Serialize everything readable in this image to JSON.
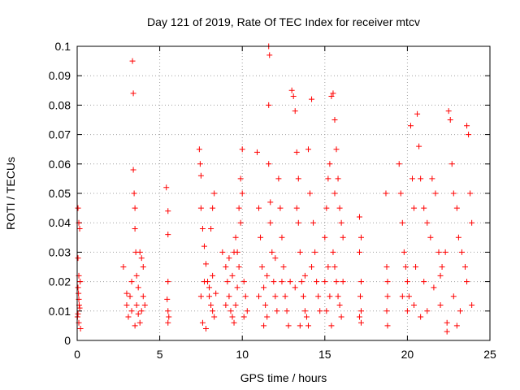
{
  "chart_data": {
    "type": "scatter",
    "title": "Day 121 of 2019, Rate Of TEC Index for receiver mtcv",
    "xlabel": "GPS time / hours",
    "ylabel": "ROTI / TECUs",
    "xlim": [
      0,
      25
    ],
    "ylim": [
      0,
      0.1
    ],
    "x_ticks": [
      "0",
      "5",
      "10",
      "15",
      "20",
      "25"
    ],
    "y_ticks": [
      "0",
      "0.01",
      "0.02",
      "0.03",
      "0.04",
      "0.05",
      "0.06",
      "0.07",
      "0.08",
      "0.09",
      "0.1"
    ],
    "grid": true,
    "marker": "+",
    "color": "#ff0000",
    "series": [
      {
        "points": [
          [
            0.05,
            0.045
          ],
          [
            0.1,
            0.04
          ],
          [
            0.15,
            0.038
          ],
          [
            0.05,
            0.028
          ],
          [
            0.1,
            0.022
          ],
          [
            0.05,
            0.018
          ],
          [
            0.1,
            0.014
          ],
          [
            0.15,
            0.011
          ],
          [
            0.05,
            0.009
          ],
          [
            0.1,
            0.006
          ],
          [
            0.2,
            0.004
          ],
          [
            0.08,
            0.016
          ],
          [
            0.12,
            0.012
          ],
          [
            0.18,
            0.02
          ],
          [
            0.02,
            0.008
          ],
          [
            2.8,
            0.025
          ],
          [
            3.0,
            0.012
          ],
          [
            3.1,
            0.008
          ],
          [
            3.2,
            0.015
          ],
          [
            3.3,
            0.02
          ],
          [
            3.35,
            0.095
          ],
          [
            3.4,
            0.084
          ],
          [
            3.4,
            0.058
          ],
          [
            3.45,
            0.05
          ],
          [
            3.5,
            0.045
          ],
          [
            3.5,
            0.038
          ],
          [
            3.55,
            0.03
          ],
          [
            3.6,
            0.022
          ],
          [
            3.7,
            0.018
          ],
          [
            3.8,
            0.03
          ],
          [
            3.9,
            0.028
          ],
          [
            3.6,
            0.012
          ],
          [
            3.7,
            0.009
          ],
          [
            3.8,
            0.006
          ],
          [
            3.9,
            0.01
          ],
          [
            4.0,
            0.015
          ],
          [
            4.1,
            0.012
          ],
          [
            3.3,
            0.01
          ],
          [
            3.5,
            0.005
          ],
          [
            3.0,
            0.016
          ],
          [
            4.0,
            0.025
          ],
          [
            5.4,
            0.052
          ],
          [
            5.5,
            0.044
          ],
          [
            5.5,
            0.036
          ],
          [
            5.5,
            0.02
          ],
          [
            5.45,
            0.014
          ],
          [
            5.5,
            0.01
          ],
          [
            5.55,
            0.008
          ],
          [
            5.5,
            0.006
          ],
          [
            7.4,
            0.065
          ],
          [
            7.45,
            0.06
          ],
          [
            7.5,
            0.056
          ],
          [
            7.5,
            0.045
          ],
          [
            7.6,
            0.038
          ],
          [
            7.7,
            0.032
          ],
          [
            7.8,
            0.026
          ],
          [
            7.9,
            0.02
          ],
          [
            8.0,
            0.015
          ],
          [
            8.1,
            0.012
          ],
          [
            8.2,
            0.01
          ],
          [
            8.3,
            0.008
          ],
          [
            7.6,
            0.006
          ],
          [
            7.8,
            0.004
          ],
          [
            8.0,
            0.018
          ],
          [
            8.2,
            0.022
          ],
          [
            8.3,
            0.05
          ],
          [
            8.2,
            0.045
          ],
          [
            8.1,
            0.038
          ],
          [
            7.5,
            0.015
          ],
          [
            7.7,
            0.02
          ],
          [
            8.4,
            0.016
          ],
          [
            8.8,
            0.03
          ],
          [
            9.0,
            0.025
          ],
          [
            9.1,
            0.02
          ],
          [
            9.2,
            0.015
          ],
          [
            9.3,
            0.01
          ],
          [
            9.4,
            0.008
          ],
          [
            9.5,
            0.006
          ],
          [
            9.6,
            0.035
          ],
          [
            9.7,
            0.03
          ],
          [
            9.8,
            0.045
          ],
          [
            9.9,
            0.055
          ],
          [
            10.0,
            0.065
          ],
          [
            10.0,
            0.05
          ],
          [
            9.9,
            0.04
          ],
          [
            9.8,
            0.025
          ],
          [
            9.7,
            0.018
          ],
          [
            9.6,
            0.012
          ],
          [
            10.1,
            0.02
          ],
          [
            10.2,
            0.015
          ],
          [
            10.3,
            0.01
          ],
          [
            9.0,
            0.012
          ],
          [
            9.2,
            0.028
          ],
          [
            9.4,
            0.022
          ],
          [
            9.5,
            0.03
          ],
          [
            10.1,
            0.008
          ],
          [
            10.9,
            0.064
          ],
          [
            11.0,
            0.045
          ],
          [
            11.1,
            0.035
          ],
          [
            11.2,
            0.025
          ],
          [
            11.3,
            0.018
          ],
          [
            11.4,
            0.012
          ],
          [
            11.5,
            0.008
          ],
          [
            11.6,
            0.1
          ],
          [
            11.65,
            0.097
          ],
          [
            11.6,
            0.08
          ],
          [
            11.6,
            0.06
          ],
          [
            11.7,
            0.047
          ],
          [
            11.7,
            0.04
          ],
          [
            11.8,
            0.03
          ],
          [
            11.9,
            0.02
          ],
          [
            12.0,
            0.015
          ],
          [
            12.1,
            0.01
          ],
          [
            12.2,
            0.055
          ],
          [
            12.3,
            0.045
          ],
          [
            12.4,
            0.035
          ],
          [
            12.5,
            0.025
          ],
          [
            12.6,
            0.015
          ],
          [
            12.7,
            0.01
          ],
          [
            12.8,
            0.005
          ],
          [
            12.9,
            0.02
          ],
          [
            11.3,
            0.005
          ],
          [
            11.5,
            0.022
          ],
          [
            12.0,
            0.028
          ],
          [
            12.4,
            0.02
          ],
          [
            11.0,
            0.015
          ],
          [
            13.0,
            0.085
          ],
          [
            13.1,
            0.083
          ],
          [
            13.2,
            0.078
          ],
          [
            13.3,
            0.064
          ],
          [
            13.4,
            0.055
          ],
          [
            13.3,
            0.045
          ],
          [
            13.4,
            0.04
          ],
          [
            13.5,
            0.03
          ],
          [
            13.6,
            0.02
          ],
          [
            13.7,
            0.015
          ],
          [
            13.8,
            0.01
          ],
          [
            13.9,
            0.008
          ],
          [
            14.0,
            0.065
          ],
          [
            14.2,
            0.082
          ],
          [
            14.1,
            0.05
          ],
          [
            14.3,
            0.04
          ],
          [
            14.4,
            0.03
          ],
          [
            14.2,
            0.025
          ],
          [
            14.5,
            0.02
          ],
          [
            14.6,
            0.015
          ],
          [
            14.7,
            0.01
          ],
          [
            13.5,
            0.005
          ],
          [
            14.0,
            0.005
          ],
          [
            13.2,
            0.018
          ],
          [
            13.8,
            0.022
          ],
          [
            15.0,
            0.035
          ],
          [
            15.1,
            0.045
          ],
          [
            15.2,
            0.055
          ],
          [
            15.3,
            0.06
          ],
          [
            15.4,
            0.083
          ],
          [
            15.5,
            0.084
          ],
          [
            15.6,
            0.075
          ],
          [
            15.7,
            0.065
          ],
          [
            15.8,
            0.055
          ],
          [
            15.9,
            0.045
          ],
          [
            16.0,
            0.04
          ],
          [
            16.1,
            0.035
          ],
          [
            15.5,
            0.03
          ],
          [
            15.6,
            0.025
          ],
          [
            15.7,
            0.02
          ],
          [
            15.8,
            0.015
          ],
          [
            15.9,
            0.012
          ],
          [
            16.0,
            0.008
          ],
          [
            15.1,
            0.01
          ],
          [
            15.3,
            0.015
          ],
          [
            15.2,
            0.025
          ],
          [
            15.4,
            0.005
          ],
          [
            16.1,
            0.02
          ],
          [
            15.0,
            0.02
          ],
          [
            15.6,
            0.05
          ],
          [
            17.1,
            0.042
          ],
          [
            17.2,
            0.035
          ],
          [
            17.1,
            0.03
          ],
          [
            17.2,
            0.02
          ],
          [
            17.15,
            0.015
          ],
          [
            17.2,
            0.01
          ],
          [
            17.1,
            0.008
          ],
          [
            17.2,
            0.006
          ],
          [
            18.7,
            0.05
          ],
          [
            18.75,
            0.025
          ],
          [
            18.8,
            0.02
          ],
          [
            18.8,
            0.015
          ],
          [
            18.75,
            0.01
          ],
          [
            18.8,
            0.005
          ],
          [
            19.5,
            0.06
          ],
          [
            19.6,
            0.05
          ],
          [
            19.7,
            0.04
          ],
          [
            19.8,
            0.03
          ],
          [
            19.9,
            0.025
          ],
          [
            20.0,
            0.02
          ],
          [
            20.1,
            0.015
          ],
          [
            20.2,
            0.073
          ],
          [
            20.3,
            0.055
          ],
          [
            20.4,
            0.045
          ],
          [
            20.6,
            0.077
          ],
          [
            20.7,
            0.066
          ],
          [
            20.8,
            0.055
          ],
          [
            21.0,
            0.045
          ],
          [
            21.2,
            0.04
          ],
          [
            21.4,
            0.035
          ],
          [
            21.5,
            0.055
          ],
          [
            21.7,
            0.05
          ],
          [
            21.9,
            0.03
          ],
          [
            22.1,
            0.025
          ],
          [
            22.3,
            0.03
          ],
          [
            22.5,
            0.078
          ],
          [
            22.6,
            0.075
          ],
          [
            22.7,
            0.06
          ],
          [
            22.8,
            0.05
          ],
          [
            23.0,
            0.045
          ],
          [
            23.1,
            0.035
          ],
          [
            23.3,
            0.03
          ],
          [
            23.5,
            0.025
          ],
          [
            23.6,
            0.073
          ],
          [
            23.7,
            0.07
          ],
          [
            23.8,
            0.05
          ],
          [
            23.9,
            0.04
          ],
          [
            19.7,
            0.015
          ],
          [
            20.0,
            0.01
          ],
          [
            20.4,
            0.012
          ],
          [
            20.8,
            0.008
          ],
          [
            21.2,
            0.01
          ],
          [
            21.6,
            0.018
          ],
          [
            22.0,
            0.012
          ],
          [
            22.4,
            0.006
          ],
          [
            22.8,
            0.015
          ],
          [
            23.2,
            0.01
          ],
          [
            23.6,
            0.02
          ],
          [
            23.9,
            0.012
          ],
          [
            22.4,
            0.003
          ],
          [
            21.0,
            0.02
          ],
          [
            22.0,
            0.022
          ],
          [
            20.5,
            0.025
          ],
          [
            23.0,
            0.005
          ]
        ]
      }
    ]
  }
}
